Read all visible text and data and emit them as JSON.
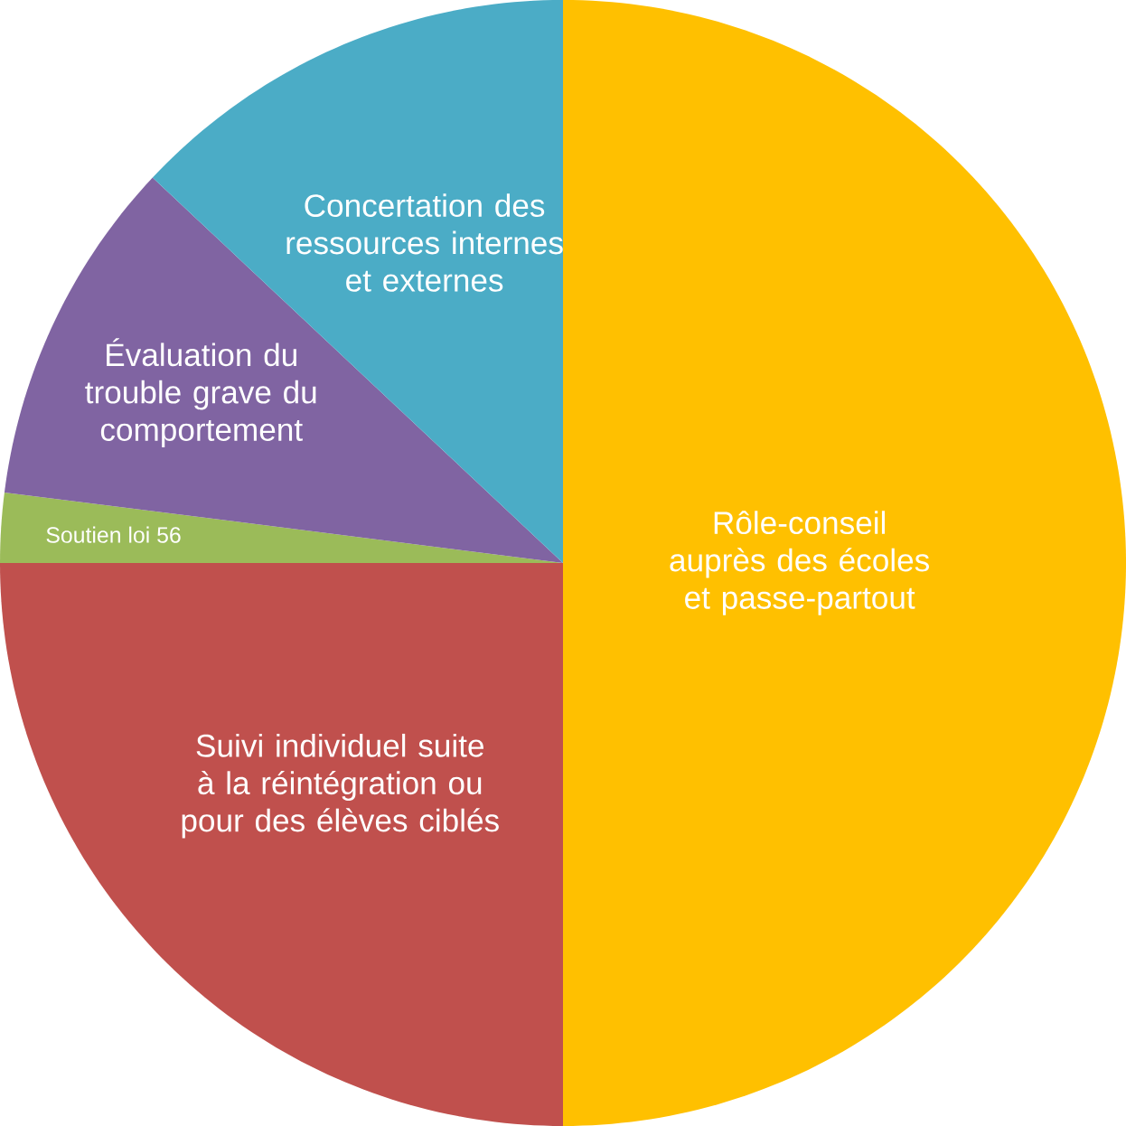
{
  "chart_data": {
    "type": "pie",
    "categories": [
      "Rôle-conseil auprès des écoles et passe-partout",
      "Suivi individuel suite à la réintégration ou pour des élèves ciblés",
      "Soutien loi 56",
      "Évaluation du trouble grave du comportement",
      "Concertation des ressources internes et externes"
    ],
    "values": [
      50,
      25,
      2,
      10,
      13
    ],
    "colors": [
      "#ffc000",
      "#c0504d",
      "#9bbb59",
      "#8064a2",
      "#4bacc6"
    ]
  }
}
